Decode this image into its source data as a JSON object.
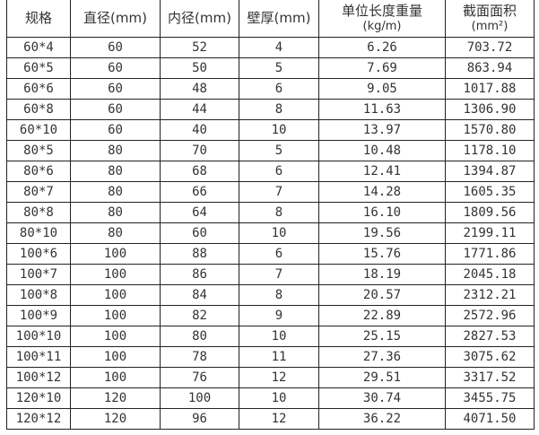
{
  "headers": [
    {
      "label": "规格",
      "unit": ""
    },
    {
      "label": "直径(mm)",
      "unit": ""
    },
    {
      "label": "内径(mm)",
      "unit": ""
    },
    {
      "label": "壁厚(mm)",
      "unit": ""
    },
    {
      "label": "单位长度重量",
      "unit": "(kg/m)"
    },
    {
      "label": "截面面积",
      "unit": "(mm²)"
    }
  ],
  "rows": [
    [
      "60*4",
      "60",
      "52",
      "4",
      "6.26",
      "703.72"
    ],
    [
      "60*5",
      "60",
      "50",
      "5",
      "7.69",
      "863.94"
    ],
    [
      "60*6",
      "60",
      "48",
      "6",
      "9.05",
      "1017.88"
    ],
    [
      "60*8",
      "60",
      "44",
      "8",
      "11.63",
      "1306.90"
    ],
    [
      "60*10",
      "60",
      "40",
      "10",
      "13.97",
      "1570.80"
    ],
    [
      "80*5",
      "80",
      "70",
      "5",
      "10.48",
      "1178.10"
    ],
    [
      "80*6",
      "80",
      "68",
      "6",
      "12.41",
      "1394.87"
    ],
    [
      "80*7",
      "80",
      "66",
      "7",
      "14.28",
      "1605.35"
    ],
    [
      "80*8",
      "80",
      "64",
      "8",
      "16.10",
      "1809.56"
    ],
    [
      "80*10",
      "80",
      "60",
      "10",
      "19.56",
      "2199.11"
    ],
    [
      "100*6",
      "100",
      "88",
      "6",
      "15.76",
      "1771.86"
    ],
    [
      "100*7",
      "100",
      "86",
      "7",
      "18.19",
      "2045.18"
    ],
    [
      "100*8",
      "100",
      "84",
      "8",
      "20.57",
      "2312.21"
    ],
    [
      "100*9",
      "100",
      "82",
      "9",
      "22.89",
      "2572.96"
    ],
    [
      "100*10",
      "100",
      "80",
      "10",
      "25.15",
      "2827.53"
    ],
    [
      "100*11",
      "100",
      "78",
      "11",
      "27.36",
      "3075.62"
    ],
    [
      "100*12",
      "100",
      "76",
      "12",
      "29.51",
      "3317.52"
    ],
    [
      "120*10",
      "120",
      "100",
      "10",
      "30.74",
      "3455.75"
    ],
    [
      "120*12",
      "120",
      "96",
      "12",
      "36.22",
      "4071.50"
    ]
  ]
}
